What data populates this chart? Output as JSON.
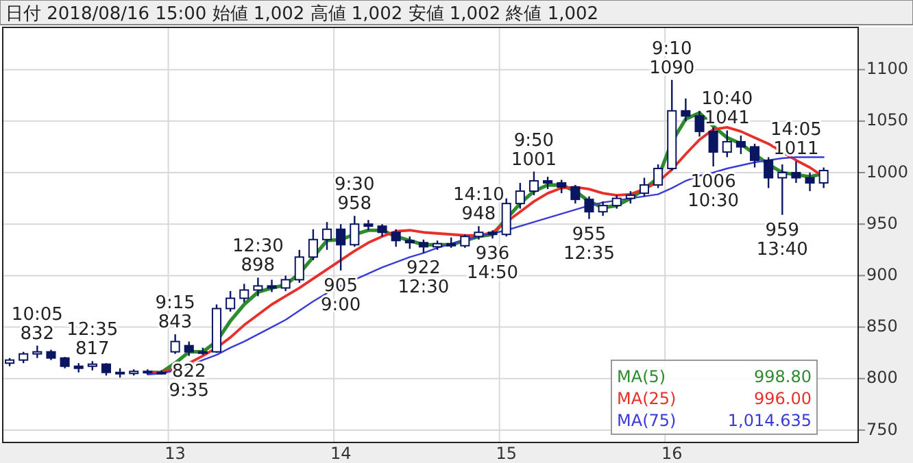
{
  "chart_data": {
    "type": "candlestick",
    "title": "日付 2018/08/16 15:00 始値 1,002 高値 1,002 安値 1,002 終値 1,002",
    "categories": [
      null,
      null,
      null,
      null,
      null,
      null,
      null,
      null,
      null,
      null,
      null,
      null,
      "13",
      null,
      null,
      null,
      null,
      null,
      null,
      null,
      null,
      null,
      null,
      null,
      "14",
      null,
      null,
      null,
      null,
      null,
      null,
      null,
      null,
      null,
      null,
      null,
      "15",
      null,
      null,
      null,
      null,
      null,
      null,
      null,
      null,
      null,
      null,
      null,
      "16",
      null,
      null,
      null,
      null,
      null,
      null,
      null,
      null,
      null,
      null,
      null,
      null,
      null
    ],
    "color": "#0b1660",
    "ohlc": [
      [
        815,
        820,
        812,
        818
      ],
      [
        818,
        826,
        815,
        824
      ],
      [
        824,
        832,
        820,
        826
      ],
      [
        826,
        828,
        818,
        820
      ],
      [
        820,
        821,
        810,
        812
      ],
      [
        812,
        815,
        806,
        810
      ],
      [
        812,
        817,
        808,
        814
      ],
      [
        814,
        815,
        803,
        806
      ],
      [
        806,
        810,
        801,
        805
      ],
      [
        805,
        809,
        803,
        807
      ],
      [
        807,
        809,
        804,
        806
      ],
      [
        806,
        808,
        804,
        806
      ],
      [
        826,
        843,
        824,
        836
      ],
      [
        832,
        836,
        822,
        826
      ],
      [
        826,
        830,
        823,
        825
      ],
      [
        826,
        872,
        825,
        868
      ],
      [
        868,
        885,
        865,
        878
      ],
      [
        878,
        892,
        874,
        886
      ],
      [
        886,
        898,
        880,
        890
      ],
      [
        890,
        896,
        884,
        888
      ],
      [
        888,
        900,
        885,
        896
      ],
      [
        896,
        925,
        893,
        918
      ],
      [
        918,
        945,
        915,
        935
      ],
      [
        935,
        952,
        925,
        945
      ],
      [
        945,
        950,
        905,
        930
      ],
      [
        930,
        958,
        928,
        950
      ],
      [
        950,
        954,
        944,
        948
      ],
      [
        948,
        950,
        938,
        942
      ],
      [
        942,
        945,
        928,
        934
      ],
      [
        934,
        938,
        926,
        932
      ],
      [
        932,
        935,
        922,
        928
      ],
      [
        928,
        934,
        925,
        931
      ],
      [
        931,
        937,
        927,
        929
      ],
      [
        929,
        940,
        927,
        938
      ],
      [
        938,
        948,
        935,
        942
      ],
      [
        942,
        944,
        936,
        940
      ],
      [
        940,
        975,
        938,
        970
      ],
      [
        970,
        990,
        965,
        982
      ],
      [
        982,
        1001,
        978,
        992
      ],
      [
        992,
        996,
        984,
        990
      ],
      [
        990,
        993,
        980,
        986
      ],
      [
        986,
        988,
        970,
        974
      ],
      [
        974,
        977,
        955,
        962
      ],
      [
        962,
        972,
        958,
        968
      ],
      [
        968,
        978,
        965,
        975
      ],
      [
        975,
        982,
        970,
        978
      ],
      [
        980,
        995,
        977,
        988
      ],
      [
        988,
        1008,
        985,
        1004
      ],
      [
        1004,
        1090,
        1002,
        1060
      ],
      [
        1060,
        1072,
        1050,
        1055
      ],
      [
        1055,
        1060,
        1035,
        1040
      ],
      [
        1040,
        1044,
        1006,
        1020
      ],
      [
        1020,
        1041,
        1015,
        1030
      ],
      [
        1030,
        1036,
        1018,
        1025
      ],
      [
        1025,
        1028,
        1005,
        1012
      ],
      [
        1012,
        1015,
        985,
        995
      ],
      [
        995,
        1008,
        959,
        1000
      ],
      [
        1000,
        1011,
        990,
        995
      ],
      [
        995,
        1000,
        982,
        990
      ],
      [
        990,
        1005,
        985,
        1002
      ],
      null,
      null
    ],
    "series": [
      {
        "name": "MA(5)",
        "type": "line",
        "color": "#2e8b2e",
        "values": [
          null,
          null,
          null,
          null,
          null,
          null,
          null,
          null,
          null,
          null,
          806,
          806,
          815,
          826,
          826,
          836,
          856,
          872,
          884,
          888,
          891,
          902,
          918,
          934,
          935,
          940,
          944,
          944,
          938,
          934,
          930,
          930,
          930,
          934,
          938,
          940,
          955,
          970,
          982,
          988,
          988,
          982,
          972,
          966,
          968,
          975,
          984,
          995,
          1030,
          1052,
          1058,
          1045,
          1034,
          1028,
          1018,
          1008,
          1000,
          998,
          996,
          999,
          null,
          null
        ]
      },
      {
        "name": "MA(25)",
        "type": "line",
        "color": "#e8302a",
        "values": [
          null,
          null,
          null,
          null,
          null,
          null,
          null,
          null,
          null,
          null,
          806,
          806,
          810,
          815,
          822,
          830,
          840,
          852,
          862,
          872,
          880,
          888,
          897,
          906,
          915,
          924,
          932,
          938,
          943,
          944,
          942,
          941,
          940,
          939,
          939,
          942,
          952,
          962,
          972,
          980,
          985,
          986,
          984,
          980,
          978,
          979,
          984,
          991,
          1003,
          1018,
          1032,
          1042,
          1044,
          1040,
          1034,
          1028,
          1020,
          1012,
          1005,
          996,
          null,
          null
        ]
      },
      {
        "name": "MA(75)",
        "type": "line",
        "color": "#3a3ad8",
        "values": [
          null,
          null,
          null,
          null,
          null,
          null,
          null,
          null,
          null,
          null,
          804,
          805,
          808,
          812,
          818,
          823,
          830,
          836,
          843,
          850,
          857,
          866,
          875,
          883,
          890,
          896,
          902,
          908,
          913,
          918,
          922,
          927,
          931,
          935,
          938,
          941,
          944,
          948,
          952,
          956,
          960,
          964,
          968,
          971,
          973,
          975,
          977,
          979,
          985,
          992,
          997,
          1000,
          1004,
          1007,
          1010,
          1012,
          1014,
          1015,
          1015,
          1015,
          null,
          null
        ]
      }
    ],
    "annotations": [
      {
        "text": "10:05\n832",
        "y": 832
      },
      {
        "text": "12:35\n817",
        "y": 817
      },
      {
        "text": "9:15\n843",
        "y": 843
      },
      {
        "text": "822\n9:35",
        "y": 822
      },
      {
        "text": "12:30\n898",
        "y": 898
      },
      {
        "text": "905\n9:00",
        "y": 905
      },
      {
        "text": "9:30\n958",
        "y": 958
      },
      {
        "text": "922\n12:30",
        "y": 922
      },
      {
        "text": "14:10\n948",
        "y": 948
      },
      {
        "text": "936\n14:50",
        "y": 936
      },
      {
        "text": "9:50\n1001",
        "y": 1001
      },
      {
        "text": "955\n12:35",
        "y": 955
      },
      {
        "text": "9:10\n1090",
        "y": 1090
      },
      {
        "text": "1006\n10:30",
        "y": 1006
      },
      {
        "text": "10:40\n1041",
        "y": 1041
      },
      {
        "text": "959\n13:40",
        "y": 959
      },
      {
        "text": "14:05\n1011",
        "y": 1011
      },
      "998.80",
      "996.00",
      "1,014.635"
    ],
    "ylim": [
      738,
      1141
    ],
    "yticks": [
      750,
      800,
      850,
      900,
      950,
      1000,
      1050,
      1100
    ],
    "grid": true,
    "legend": "bottom right"
  }
}
